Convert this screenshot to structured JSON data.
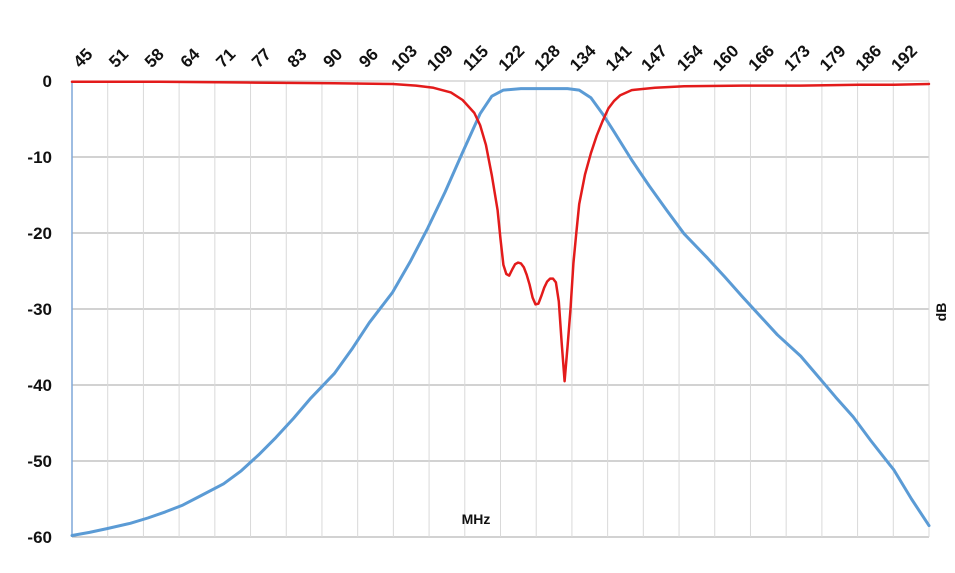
{
  "chart_data": {
    "type": "line",
    "title": "",
    "xlabel": "MHz",
    "ylabel": "dB",
    "x_tick_labels": [
      "45",
      "51",
      "58",
      "64",
      "71",
      "77",
      "83",
      "90",
      "96",
      "103",
      "109",
      "115",
      "122",
      "128",
      "134",
      "141",
      "147",
      "154",
      "160",
      "166",
      "173",
      "179",
      "186",
      "192"
    ],
    "xlim": [
      45,
      192
    ],
    "ylim": [
      -60,
      0
    ],
    "y_ticks": [
      0,
      -10,
      -20,
      -30,
      -40,
      -50,
      -60
    ],
    "y_tick_labels": [
      "0",
      "-10",
      "-20",
      "-30",
      "-40",
      "-50",
      "-60"
    ],
    "grid": true,
    "legend": "none",
    "series": [
      {
        "color": "#5b9bd5",
        "x": [
          45,
          48,
          51,
          55,
          58,
          61,
          64,
          67,
          71,
          74,
          77,
          80,
          83,
          86,
          90,
          93,
          96,
          100,
          103,
          106,
          109,
          112,
          115,
          117,
          119,
          122,
          125,
          128,
          130,
          132,
          134,
          136,
          138,
          141,
          144,
          147,
          150,
          154,
          157,
          160,
          163,
          166,
          170,
          173,
          176,
          179,
          182,
          186,
          189,
          192
        ],
        "y": [
          -59.8,
          -59.4,
          -58.9,
          -58.2,
          -57.5,
          -56.7,
          -55.8,
          -54.6,
          -53.0,
          -51.3,
          -49.2,
          -46.9,
          -44.4,
          -41.7,
          -38.5,
          -35.3,
          -31.8,
          -27.8,
          -23.8,
          -19.4,
          -14.6,
          -9.4,
          -4.3,
          -2.0,
          -1.2,
          -1.0,
          -1.0,
          -1.0,
          -1.0,
          -1.2,
          -2.2,
          -4.3,
          -6.7,
          -10.4,
          -13.8,
          -17.0,
          -20.1,
          -23.3,
          -25.8,
          -28.4,
          -30.9,
          -33.4,
          -36.2,
          -38.9,
          -41.6,
          -44.2,
          -47.3,
          -51.2,
          -55.0,
          -58.5
        ]
      },
      {
        "color": "#e31b1b",
        "x": [
          45,
          60,
          75,
          90,
          100,
          104,
          107,
          110,
          112,
          114,
          115,
          116,
          117,
          118,
          118.5,
          119,
          119.5,
          120,
          120.5,
          121,
          121.5,
          122,
          122.5,
          123,
          123.5,
          124,
          124.5,
          125,
          125.5,
          126,
          126.5,
          127,
          127.5,
          128,
          128.5,
          129,
          129.5,
          130,
          130.5,
          131,
          131.5,
          132,
          133,
          134,
          135,
          136,
          137,
          138,
          139,
          141,
          145,
          150,
          160,
          170,
          180,
          186,
          192
        ],
        "y": [
          -0.1,
          -0.1,
          -0.2,
          -0.3,
          -0.4,
          -0.6,
          -0.9,
          -1.5,
          -2.5,
          -4.2,
          -5.8,
          -8.4,
          -12.4,
          -17.0,
          -20.8,
          -24.2,
          -25.4,
          -25.6,
          -24.8,
          -24.1,
          -23.9,
          -24.0,
          -24.5,
          -25.5,
          -26.8,
          -28.5,
          -29.4,
          -29.3,
          -28.3,
          -27.2,
          -26.4,
          -26.0,
          -26.0,
          -26.5,
          -29.0,
          -34.5,
          -39.5,
          -35.0,
          -30.0,
          -24.0,
          -20.0,
          -16.2,
          -12.3,
          -9.5,
          -7.2,
          -5.3,
          -3.6,
          -2.6,
          -1.9,
          -1.2,
          -0.9,
          -0.7,
          -0.6,
          -0.6,
          -0.5,
          -0.5,
          -0.4
        ]
      }
    ]
  }
}
